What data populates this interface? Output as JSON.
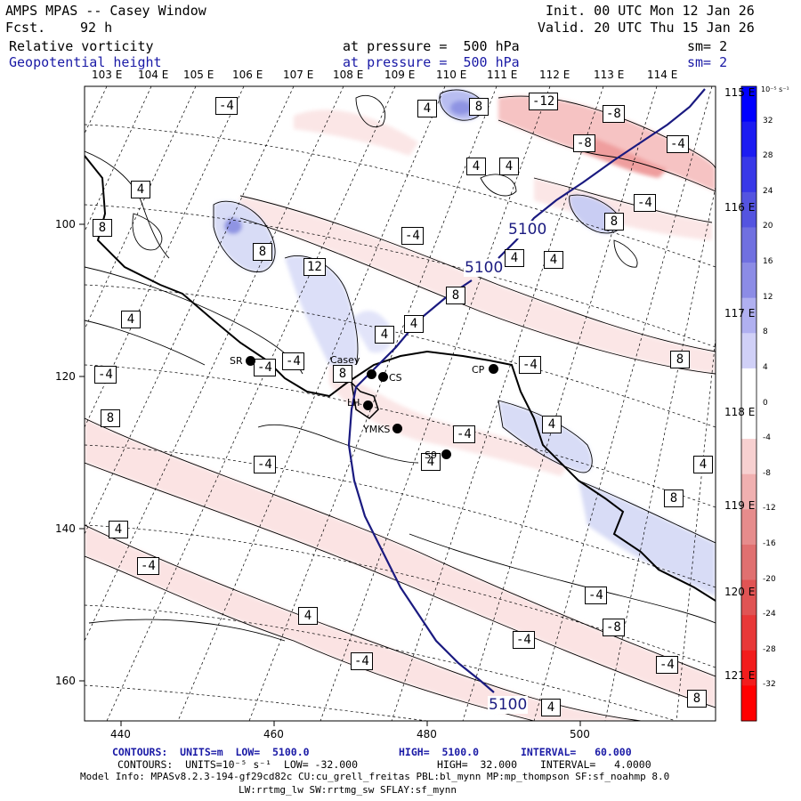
{
  "header": {
    "title": "AMPS MPAS -- Casey Window",
    "forecast_label": "Fcst.",
    "forecast_value": "92 h",
    "init": "Init. 00 UTC Mon 12 Jan 26",
    "valid": "Valid. 20 UTC Thu 15 Jan 26",
    "field1_name": "Relative vorticity",
    "field1_level": "at pressure =  500 hPa",
    "field1_sm": "sm= 2",
    "field2_name": "Geopotential height",
    "field2_level": "at pressure =  500 hPa",
    "field2_sm": "sm= 2"
  },
  "top_lon_labels": [
    "103 E",
    "104 E",
    "105 E",
    "106 E",
    "107 E",
    "108 E",
    "109 E",
    "110 E",
    "111 E",
    "112 E",
    "113 E",
    "114 E"
  ],
  "right_lon_labels": [
    "115 E",
    "116 E",
    "117 E",
    "118 E",
    "119 E",
    "120 E",
    "121 E"
  ],
  "left_axis_ticks": [
    "100",
    "120",
    "140",
    "160"
  ],
  "bottom_axis_ticks": [
    "440",
    "460",
    "480",
    "500"
  ],
  "stations": [
    {
      "id": "SR",
      "label": "SR"
    },
    {
      "id": "Casey",
      "label": "Casey"
    },
    {
      "id": "CS",
      "label": "CS"
    },
    {
      "id": "CP",
      "label": "CP"
    },
    {
      "id": "LH",
      "label": "LH"
    },
    {
      "id": "YMKS",
      "label": "YMKS"
    },
    {
      "id": "S9",
      "label": "S9"
    }
  ],
  "contour_labels_vort": [
    "-4",
    "4",
    "8",
    "-12",
    "-8",
    "-8",
    "-4",
    "4",
    "4",
    "4",
    "8",
    "8",
    "-4",
    "-4",
    "8",
    "12",
    "4",
    "4",
    "8",
    "4",
    "-4",
    "4",
    "-4",
    "4",
    "-4",
    "-4",
    "8",
    "8",
    "4",
    "-4",
    "4",
    "8",
    "4",
    "-4",
    "4",
    "-4",
    "-4",
    "4",
    "-4",
    "-8",
    "-4",
    "-4",
    "4",
    "8",
    "8"
  ],
  "height_labels": [
    "5100",
    "5100",
    "5100"
  ],
  "colorbar": {
    "unit": "10⁻⁵ s⁻¹",
    "ticks": [
      "32",
      "28",
      "24",
      "20",
      "16",
      "12",
      "8",
      "4",
      "0",
      "-4",
      "-8",
      "-12",
      "-16",
      "-20",
      "-24",
      "-28",
      "-32"
    ],
    "colors": [
      "#0000ff",
      "#1c1cf2",
      "#3838e8",
      "#5454e0",
      "#7070e0",
      "#8c8ce6",
      "#b0b0f0",
      "#d0d0f7",
      "#ffffff",
      "#ffffff",
      "#f7d0d0",
      "#f0b0b0",
      "#e68c8c",
      "#e07070",
      "#e05454",
      "#e83838",
      "#f21c1c",
      "#ff0000"
    ]
  },
  "footer": {
    "line1_a": "CONTOURS:  UNITS=m  LOW=  5100.0",
    "line1_b": "HIGH=  5100.0",
    "line1_c": "INTERVAL=   60.000",
    "line2_a": "CONTOURS:  UNITS=10⁻⁵ s⁻¹  LOW= -32.000",
    "line2_b": "HIGH=  32.000",
    "line2_c": "INTERVAL=   4.0000",
    "model_info": "Model Info: MPASv8.2.3-194-gf29cd82c CU:cu_grell_freitas PBL:bl_mynn MP:mp_thompson SF:sf_noahmp 8.0",
    "model_info2": "LW:rrtmg_lw SW:rrtmg_sw SFLAY:sf_mynn"
  }
}
